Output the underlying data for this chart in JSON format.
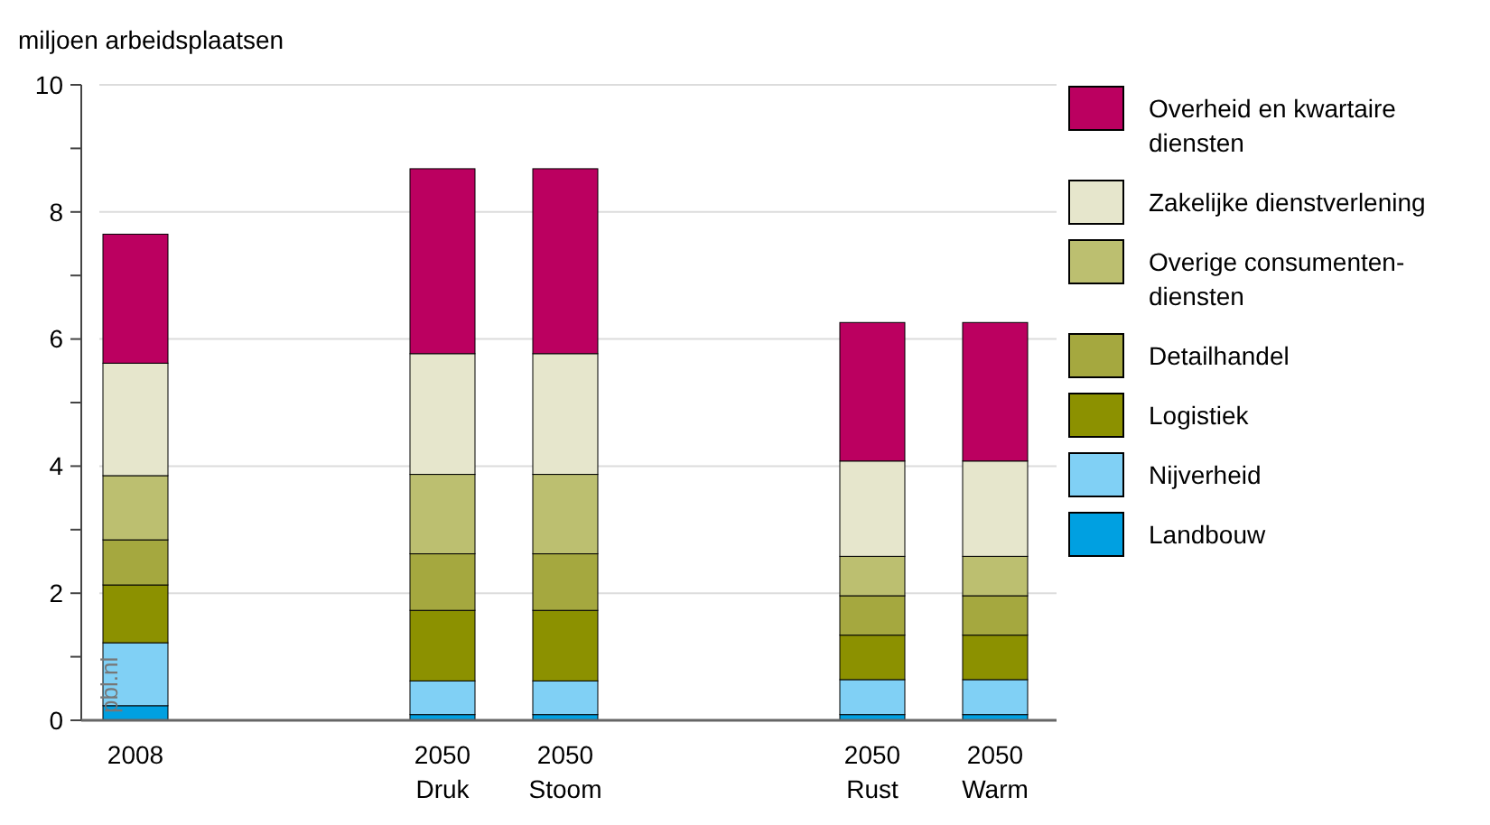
{
  "chart_data": {
    "type": "bar",
    "stacked": true,
    "ylabel": "miljoen arbeidsplaatsen",
    "categories": [
      "2008",
      "2050\nDruk",
      "2050\nStoom",
      "2050\nRust",
      "2050\nWarm"
    ],
    "ylim": [
      0,
      10
    ],
    "yticks": [
      0,
      {
        "value": 1,
        "label": null
      },
      2,
      {
        "value": 3,
        "label": null
      },
      4,
      {
        "value": 5,
        "label": null
      },
      6,
      {
        "value": 7,
        "label": null
      },
      8,
      {
        "value": 9,
        "label": null
      },
      10
    ],
    "grid": "y",
    "legend": "right",
    "annotations": [
      "pbl.nl"
    ],
    "series": [
      {
        "name": "Landbouw",
        "color": "#00a0e1",
        "values": [
          0.23,
          0.09,
          0.09,
          0.09,
          0.09
        ]
      },
      {
        "name": "Nijverheid",
        "color": "#80d0f5",
        "values": [
          0.99,
          0.53,
          0.53,
          0.55,
          0.55
        ]
      },
      {
        "name": "Logistiek",
        "color": "#8c9100",
        "values": [
          0.91,
          1.11,
          1.11,
          0.7,
          0.7
        ]
      },
      {
        "name": "Detailhandel",
        "color": "#a5a83f",
        "values": [
          0.71,
          0.89,
          0.89,
          0.62,
          0.62
        ]
      },
      {
        "name": "Overige consumenten-diensten",
        "color": "#bcbf70",
        "values": [
          1.01,
          1.25,
          1.25,
          0.62,
          0.62
        ]
      },
      {
        "name": "Zakelijke dienstverlening",
        "color": "#e6e6cc",
        "values": [
          1.77,
          1.9,
          1.9,
          1.5,
          1.5
        ]
      },
      {
        "name": "Overheid en kwartaire diensten",
        "color": "#bb0060",
        "values": [
          2.03,
          2.91,
          2.91,
          2.18,
          2.18
        ]
      }
    ]
  }
}
